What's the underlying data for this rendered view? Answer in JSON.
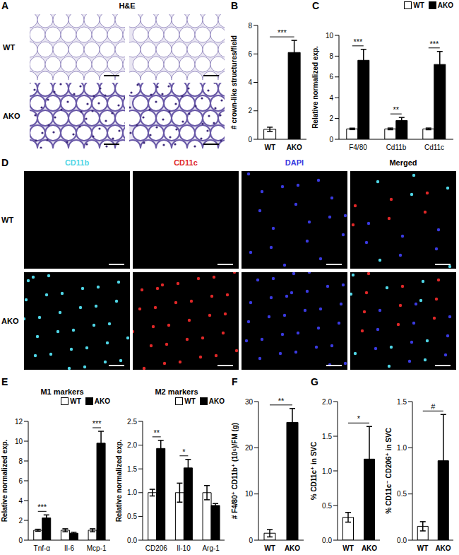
{
  "images": [
    {
      "panel": "A",
      "title": "H&E",
      "rows": [
        "WT",
        "AKO"
      ]
    },
    {
      "panel": "D",
      "columns": [
        "CD11b",
        "CD11c",
        "DAPI",
        "Merged"
      ],
      "rows": [
        "WT",
        "AKO"
      ]
    }
  ],
  "chart_data": [
    {
      "panel": "B",
      "type": "bar",
      "ylabel": "# crown-like structures/field",
      "categories": [
        "WT",
        "AKO"
      ],
      "values": [
        0.7,
        6.1
      ],
      "errors": [
        0.15,
        0.85
      ],
      "colors": [
        "#ffffff",
        "#000000"
      ],
      "ylim": [
        0,
        8
      ],
      "yticks": [
        0,
        2,
        4,
        6,
        8
      ],
      "annotations": [
        "***"
      ]
    },
    {
      "panel": "C",
      "type": "bar",
      "ylabel": "Relative normalized exp.",
      "categories": [
        "F4/80",
        "Cd11b",
        "Cd11c"
      ],
      "series": [
        {
          "name": "WT",
          "color": "#ffffff",
          "values": [
            1,
            1,
            1
          ],
          "errors": [
            0.07,
            0.08,
            0.08
          ]
        },
        {
          "name": "AKO",
          "color": "#000000",
          "values": [
            7.6,
            1.8,
            7.2
          ],
          "errors": [
            1.05,
            0.3,
            1.25
          ]
        }
      ],
      "ylim": [
        0,
        10
      ],
      "yticks": [
        0,
        2,
        4,
        6,
        8,
        10
      ],
      "legend": "upper right",
      "annotations": [
        "***",
        "**",
        "***"
      ]
    },
    {
      "panel": "E",
      "type": "bar",
      "title": "M1 markers",
      "ylabel": "Relative normalized exp.",
      "categories": [
        "Tnf-α",
        "Il-6",
        "Mcp-1"
      ],
      "series": [
        {
          "name": "WT",
          "color": "#ffffff",
          "values": [
            1,
            1,
            1
          ],
          "errors": [
            0.1,
            0.15,
            0.15
          ]
        },
        {
          "name": "AKO",
          "color": "#000000",
          "values": [
            2.25,
            0.7,
            9.8
          ],
          "errors": [
            0.3,
            0.1,
            1.2
          ]
        }
      ],
      "ylim": [
        0,
        12
      ],
      "yticks": [
        0,
        2,
        4,
        6,
        8,
        10,
        12
      ],
      "legend": "upper right",
      "annotations": [
        "***",
        null,
        "***"
      ]
    },
    {
      "type": "bar",
      "title": "M2 markers",
      "ylabel": "Relative normalized exp.",
      "categories": [
        "CD206",
        "Il-10",
        "Arg-1"
      ],
      "series": [
        {
          "name": "WT",
          "color": "#ffffff",
          "values": [
            1,
            1,
            1
          ],
          "errors": [
            0.07,
            0.2,
            0.15
          ]
        },
        {
          "name": "AKO",
          "color": "#000000",
          "values": [
            1.93,
            1.52,
            0.73
          ],
          "errors": [
            0.17,
            0.18,
            0.04
          ]
        }
      ],
      "ylim": [
        0,
        2.5
      ],
      "yticks": [
        {
          "value": 0,
          "label": "0.0"
        },
        0.5,
        {
          "value": 1,
          "label": "1.0"
        },
        1.5,
        {
          "value": 2,
          "label": "2.0"
        },
        2.5
      ],
      "legend": "upper right",
      "annotations": [
        "**",
        "*",
        null
      ]
    },
    {
      "panel": "F",
      "type": "bar",
      "ylabel": "# F4/80⁺ CD11b⁺ (10⁵)/FM (g)",
      "categories": [
        "WT",
        "AKO"
      ],
      "values": [
        1.5,
        25.5
      ],
      "errors": [
        0.8,
        3.0
      ],
      "colors": [
        "#ffffff",
        "#000000"
      ],
      "ylim": [
        0,
        30
      ],
      "yticks": [
        0,
        10,
        20,
        30
      ],
      "annotations": [
        "**"
      ]
    },
    {
      "panel": "G",
      "type": "bar",
      "ylabel": "% CD11c⁺ in SVC",
      "categories": [
        "WT",
        "AKO"
      ],
      "values": [
        0.33,
        1.17
      ],
      "errors": [
        0.07,
        0.47
      ],
      "colors": [
        "#ffffff",
        "#000000"
      ],
      "ylim": [
        0,
        2
      ],
      "yticks": [
        {
          "value": 0,
          "label": "0.0"
        },
        0.5,
        {
          "value": 1,
          "label": "1.0"
        },
        1.5,
        {
          "value": 2,
          "label": "2.0"
        }
      ],
      "annotations": [
        "*"
      ]
    },
    {
      "type": "bar",
      "ylabel": "% CD11c⁻ CD206⁺ in SVC",
      "categories": [
        "WT",
        "AKO"
      ],
      "values": [
        0.15,
        0.86
      ],
      "errors": [
        0.05,
        0.5
      ],
      "colors": [
        "#ffffff",
        "#000000"
      ],
      "ylim": [
        0,
        1.5
      ],
      "yticks": [
        {
          "value": 0,
          "label": "0.0"
        },
        0.5,
        {
          "value": 1,
          "label": "1.0"
        },
        1.5
      ],
      "annotations": [
        "#"
      ]
    }
  ]
}
